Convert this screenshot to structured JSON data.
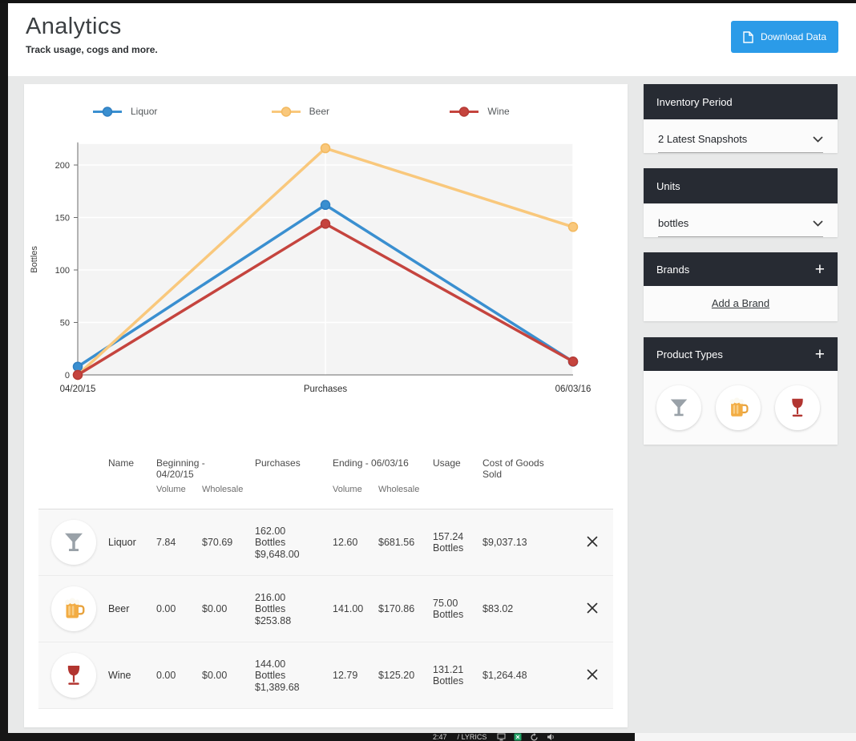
{
  "header": {
    "title": "Analytics",
    "subtitle": "Track usage, cogs and more.",
    "download_label": "Download Data"
  },
  "chart_data": {
    "type": "line",
    "categories": [
      "04/20/15",
      "Purchases",
      "06/03/16"
    ],
    "series": [
      {
        "name": "Liquor",
        "color": "#3a8fd0",
        "point_color": "#2f7fc1",
        "values": [
          7.84,
          162.0,
          12.6
        ]
      },
      {
        "name": "Beer",
        "color": "#f9c87c",
        "point_color": "#f3b95f",
        "values": [
          0.0,
          216.0,
          141.0
        ]
      },
      {
        "name": "Wine",
        "color": "#c5443e",
        "point_color": "#b53a35",
        "values": [
          0.0,
          144.0,
          12.79
        ]
      }
    ],
    "title": "",
    "xlabel": "",
    "ylabel": "Bottles",
    "ylim": [
      0,
      220
    ],
    "yticks": [
      0,
      50,
      100,
      150,
      200
    ],
    "grid": true,
    "legend_position": "top"
  },
  "table": {
    "headers": {
      "name": "Name",
      "beginning": "Beginning - 04/20/15",
      "purchases": "Purchases",
      "ending": "Ending - 06/03/16",
      "usage": "Usage",
      "cogs": "Cost of Goods Sold",
      "volume": "Volume",
      "wholesale": "Wholesale"
    },
    "rows": [
      {
        "icon": "martini",
        "name": "Liquor",
        "beg_volume": "7.84",
        "beg_wholesale": "$70.69",
        "purchases_qty": "162.00 Bottles",
        "purchases_amount": "$9,648.00",
        "end_volume": "12.60",
        "end_wholesale": "$681.56",
        "usage": "157.24 Bottles",
        "cogs": "$9,037.13"
      },
      {
        "icon": "beer",
        "name": "Beer",
        "beg_volume": "0.00",
        "beg_wholesale": "$0.00",
        "purchases_qty": "216.00 Bottles",
        "purchases_amount": "$253.88",
        "end_volume": "141.00",
        "end_wholesale": "$170.86",
        "usage": "75.00 Bottles",
        "cogs": "$83.02"
      },
      {
        "icon": "wine",
        "name": "Wine",
        "beg_volume": "0.00",
        "beg_wholesale": "$0.00",
        "purchases_qty": "144.00 Bottles",
        "purchases_amount": "$1,389.68",
        "end_volume": "12.79",
        "end_wholesale": "$125.20",
        "usage": "131.21 Bottles",
        "cogs": "$1,264.48"
      }
    ]
  },
  "sidebar": {
    "inventory_period": {
      "title": "Inventory Period",
      "value": "2 Latest Snapshots"
    },
    "units": {
      "title": "Units",
      "value": "bottles"
    },
    "brands": {
      "title": "Brands",
      "add_action": "+",
      "link": "Add a Brand"
    },
    "product_types": {
      "title": "Product Types",
      "add_action": "+",
      "icons": [
        "martini",
        "beer",
        "wine"
      ]
    }
  },
  "taskbar": {
    "time": "2:47",
    "separator": "/",
    "label": "LYRICS"
  }
}
